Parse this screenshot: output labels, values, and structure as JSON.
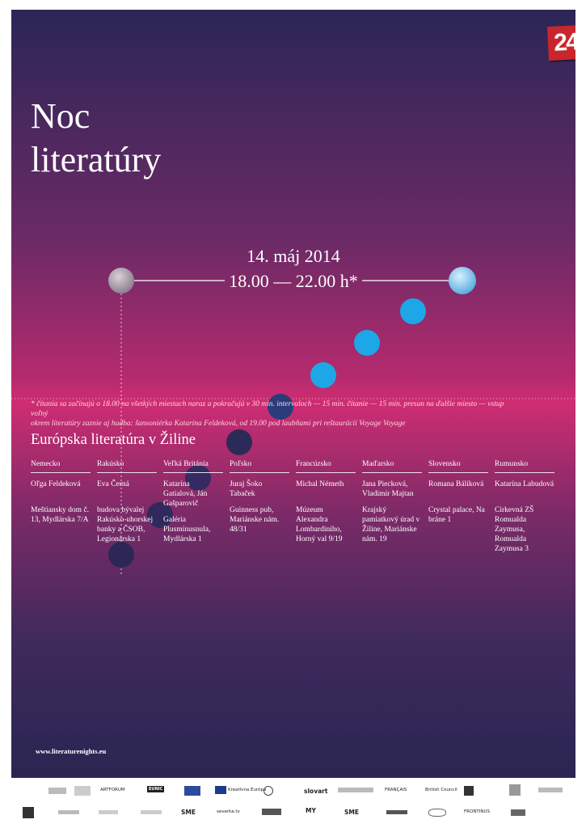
{
  "badge": "24",
  "title": [
    "Noc",
    "literatúry"
  ],
  "date": "14. máj 2014",
  "time": "18.00 — 22.00 h*",
  "note": [
    "* čítania sa začínajú o 18.00 na všetkých miestach naraz a pokračujú v 30 min. intervaloch — 15 min. čítanie — 15 min. presun na ďalšie miesto — vstup voľný",
    "okrem literatúry zaznie aj hudba: šansoniérka Katarína Feldeková, od 19.00 pod laubňami pri reštaurácii Voyage Voyage"
  ],
  "section_title": "Európska literatúra v Žiline",
  "columns": [
    {
      "country": "Nemecko",
      "author": "Oľga Feldeková",
      "venue": "Meštiansky dom č. 13, Mydlárska 7/A"
    },
    {
      "country": "Rakúsko",
      "author": "Eva Černá",
      "venue": "budova bývalej Rakúsko-uhorskej banky a ČSOB, Legionárska 1"
    },
    {
      "country": "Veľká Británia",
      "author": "Katarína Gatialová, Ján Gašparovič",
      "venue": "Galéria Plusmínusnula, Mydlárska 1"
    },
    {
      "country": "Poľsko",
      "author": "Juraj Šoko Tabaček",
      "venue": "Guinness pub, Mariánske nám. 48/31"
    },
    {
      "country": "Francúzsko",
      "author": "Michal Németh",
      "venue": "Múzeum Alexandra Lombardiniho, Horný val 9/19"
    },
    {
      "country": "Maďarsko",
      "author": "Jana Piecková, Vladimír Majtan",
      "venue": "Krajský pamiatkový úrad v Žiline, Mariánske nám. 19"
    },
    {
      "country": "Slovensko",
      "author": "Romana Bálíková",
      "venue": "Crystal palace, Na bráne 1"
    },
    {
      "country": "Rumunsko",
      "author": "Katarína Labudová",
      "venue": "Cirkevná ZŠ Romualda Zaymusa, Romualda Zaymusa 3"
    }
  ],
  "url": "www.literaturenights.eu",
  "colors": {
    "circle_bright": "#1ea7e6",
    "circle_dark": "#2c2a58",
    "badge_red": "#c8262c"
  },
  "logos": {
    "row1": [
      "ARTFORUM",
      "EUNIC",
      "Kreatívna Európa",
      "slovart",
      "British Council",
      "FRANÇAIS"
    ],
    "row2": [
      "SME",
      "severka.tv",
      "MY",
      "SME",
      "FRONTINUS"
    ]
  }
}
